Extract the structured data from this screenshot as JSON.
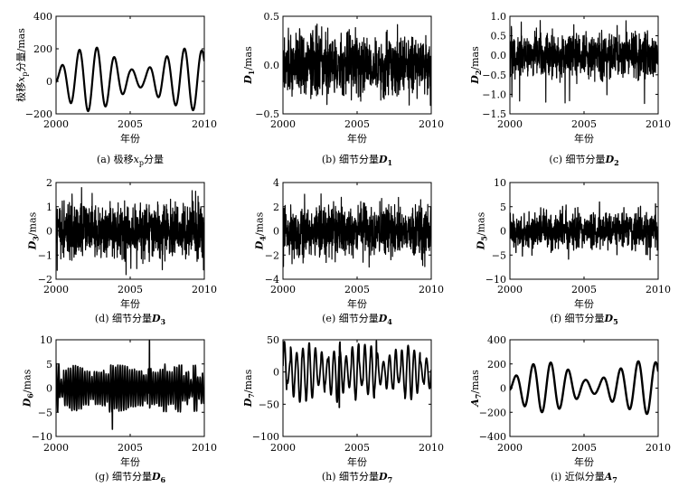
{
  "figure": {
    "xlabel_common": "年份"
  },
  "chart_data": [
    {
      "id": "a",
      "type": "line",
      "caption_prefix": "(a) 极移",
      "caption_var": "x",
      "caption_sub": "p",
      "caption_suffix": "分量",
      "ylabel_prefix": "极移",
      "ylabel_var": "x",
      "ylabel_sub": "p",
      "ylabel_suffix": "分量/mas",
      "xlabel": "年份",
      "xlim": [
        2000,
        2010
      ],
      "ylim": [
        -200,
        400
      ],
      "xticks": [
        2000,
        2005,
        2010
      ],
      "yticks": [
        -200,
        0,
        200,
        400
      ],
      "ytick_labels": [
        "−200",
        "0",
        "200",
        "400"
      ],
      "series": [
        {
          "kind": "smooth",
          "period": 1.18,
          "beat_period": 6.4,
          "amplitudes": [
            {
              "t": 2000,
              "a": 40
            },
            {
              "t": 2001,
              "a": 150
            },
            {
              "t": 2002,
              "a": 200
            },
            {
              "t": 2003,
              "a": 190
            },
            {
              "t": 2004,
              "a": 130
            },
            {
              "t": 2005,
              "a": 60
            },
            {
              "t": 2006,
              "a": 50
            },
            {
              "t": 2007,
              "a": 120
            },
            {
              "t": 2008,
              "a": 160
            },
            {
              "t": 2009,
              "a": 200
            },
            {
              "t": 2010,
              "a": 170
            }
          ],
          "offset": 50,
          "linewidth": 2.2
        }
      ]
    },
    {
      "id": "b",
      "type": "line",
      "caption_prefix": "(b) 细节分量",
      "caption_var": "D",
      "caption_sub": "1",
      "caption_suffix": "",
      "ylabel_prefix": "",
      "ylabel_var": "D",
      "ylabel_sub": "1",
      "ylabel_suffix": "/mas",
      "xlabel": "年份",
      "xlim": [
        2000,
        2010
      ],
      "ylim": [
        -0.5,
        0.5
      ],
      "xticks": [
        2000,
        2005,
        2010
      ],
      "yticks": [
        -0.5,
        0,
        0.5
      ],
      "ytick_labels": [
        "−0.5",
        "0.0",
        "0.5"
      ],
      "series": [
        {
          "kind": "noise",
          "amplitude": 0.15,
          "peak": 0.42,
          "linewidth": 1.2
        }
      ]
    },
    {
      "id": "c",
      "type": "line",
      "caption_prefix": "(c) 细节分量",
      "caption_var": "D",
      "caption_sub": "2",
      "caption_suffix": "",
      "ylabel_prefix": "",
      "ylabel_var": "D",
      "ylabel_sub": "2",
      "ylabel_suffix": "/mas",
      "xlabel": "年份",
      "xlim": [
        2000,
        2010
      ],
      "ylim": [
        -1.5,
        1.0
      ],
      "xticks": [
        2000,
        2005,
        2010
      ],
      "yticks": [
        -1.5,
        -1.0,
        -0.5,
        0,
        0.5,
        1.0
      ],
      "ytick_labels": [
        "−1.5",
        "−1.0",
        "−0.5",
        "0.0",
        "0.5",
        "1.0"
      ],
      "series": [
        {
          "kind": "noise",
          "amplitude": 0.28,
          "peak": 0.95,
          "trough": -1.25,
          "linewidth": 1.2
        }
      ]
    },
    {
      "id": "d",
      "type": "line",
      "caption_prefix": "(d) 细节分量",
      "caption_var": "D",
      "caption_sub": "3",
      "caption_suffix": "",
      "ylabel_prefix": "",
      "ylabel_var": "D",
      "ylabel_sub": "3",
      "ylabel_suffix": "/mas",
      "xlabel": "年份",
      "xlim": [
        2000,
        2010
      ],
      "ylim": [
        -2,
        2
      ],
      "xticks": [
        2000,
        2005,
        2010
      ],
      "yticks": [
        -2,
        -1,
        0,
        1,
        2
      ],
      "ytick_labels": [
        "−2",
        "−1",
        "0",
        "1",
        "2"
      ],
      "series": [
        {
          "kind": "noise",
          "amplitude": 0.55,
          "peak": 1.9,
          "trough": -1.9,
          "linewidth": 1.2
        }
      ]
    },
    {
      "id": "e",
      "type": "line",
      "caption_prefix": "(e) 细节分量",
      "caption_var": "D",
      "caption_sub": "4",
      "caption_suffix": "",
      "ylabel_prefix": "",
      "ylabel_var": "D",
      "ylabel_sub": "4",
      "ylabel_suffix": "/mas",
      "xlabel": "年份",
      "xlim": [
        2000,
        2010
      ],
      "ylim": [
        -4,
        4
      ],
      "xticks": [
        2000,
        2005,
        2010
      ],
      "yticks": [
        -4,
        -2,
        0,
        2,
        4
      ],
      "ytick_labels": [
        "−4",
        "−2",
        "0",
        "2",
        "4"
      ],
      "series": [
        {
          "kind": "noise",
          "amplitude": 1.0,
          "peak": 3.3,
          "trough": -3.3,
          "linewidth": 1.2
        }
      ]
    },
    {
      "id": "f",
      "type": "line",
      "caption_prefix": "(f) 细节分量",
      "caption_var": "D",
      "caption_sub": "5",
      "caption_suffix": "",
      "ylabel_prefix": "",
      "ylabel_var": "D",
      "ylabel_sub": "5",
      "ylabel_suffix": "/mas",
      "xlabel": "年份",
      "xlim": [
        2000,
        2010
      ],
      "ylim": [
        -10,
        10
      ],
      "xticks": [
        2000,
        2005,
        2010
      ],
      "yticks": [
        -10,
        -5,
        0,
        5,
        10
      ],
      "ytick_labels": [
        "−10",
        "−5",
        "0",
        "5",
        "10"
      ],
      "series": [
        {
          "kind": "noise",
          "amplitude": 1.8,
          "peak": 6.3,
          "trough": -6.0,
          "linewidth": 1.3
        }
      ]
    },
    {
      "id": "g",
      "type": "line",
      "caption_prefix": "(g) 细节分量",
      "caption_var": "D",
      "caption_sub": "6",
      "caption_suffix": "",
      "ylabel_prefix": "",
      "ylabel_var": "D",
      "ylabel_sub": "6",
      "ylabel_suffix": "/mas",
      "xlabel": "年份",
      "xlim": [
        2000,
        2010
      ],
      "ylim": [
        -10,
        10
      ],
      "xticks": [
        2000,
        2005,
        2010
      ],
      "yticks": [
        -10,
        -5,
        0,
        5,
        10
      ],
      "ytick_labels": [
        "−10",
        "−5",
        "0",
        "5",
        "10"
      ],
      "series": [
        {
          "kind": "osc",
          "period": 0.16,
          "amplitude": 3.5,
          "peak": 9.8,
          "trough": -8.5,
          "linewidth": 1.6
        }
      ]
    },
    {
      "id": "h",
      "type": "line",
      "caption_prefix": "(h) 细节分量",
      "caption_var": "D",
      "caption_sub": "7",
      "caption_suffix": "",
      "ylabel_prefix": "",
      "ylabel_var": "D",
      "ylabel_sub": "7",
      "ylabel_suffix": "/mas",
      "xlabel": "年份",
      "xlim": [
        2000,
        2010
      ],
      "ylim": [
        -100,
        50
      ],
      "xticks": [
        2000,
        2005,
        2010
      ],
      "yticks": [
        -100,
        -50,
        0,
        50
      ],
      "ytick_labels": [
        "−100",
        "−50",
        "0",
        "50"
      ],
      "series": [
        {
          "kind": "osc",
          "period": 0.42,
          "amplitude": 32,
          "peak": 48,
          "trough": -55,
          "linewidth": 1.8
        }
      ]
    },
    {
      "id": "i",
      "type": "line",
      "caption_prefix": "(i) 近似分量",
      "caption_var": "A",
      "caption_sub": "7",
      "caption_suffix": "",
      "ylabel_prefix": "",
      "ylabel_var": "A",
      "ylabel_sub": "7",
      "ylabel_suffix": "/mas",
      "xlabel": "年份",
      "xlim": [
        2000,
        2010
      ],
      "ylim": [
        -400,
        400
      ],
      "xticks": [
        2000,
        2005,
        2010
      ],
      "yticks": [
        -400,
        -200,
        0,
        200,
        400
      ],
      "ytick_labels": [
        "−400",
        "−200",
        "0",
        "200",
        "400"
      ],
      "series": [
        {
          "kind": "smooth",
          "period": 1.18,
          "beat_period": 6.4,
          "amplitudes": [
            {
              "t": 2000,
              "a": 50
            },
            {
              "t": 2001,
              "a": 160
            },
            {
              "t": 2002,
              "a": 210
            },
            {
              "t": 2003,
              "a": 200
            },
            {
              "t": 2004,
              "a": 140
            },
            {
              "t": 2005,
              "a": 60
            },
            {
              "t": 2006,
              "a": 55
            },
            {
              "t": 2007,
              "a": 130
            },
            {
              "t": 2008,
              "a": 180
            },
            {
              "t": 2009,
              "a": 230
            },
            {
              "t": 2010,
              "a": 200
            }
          ],
          "offset": 30,
          "linewidth": 2.4
        }
      ]
    }
  ]
}
